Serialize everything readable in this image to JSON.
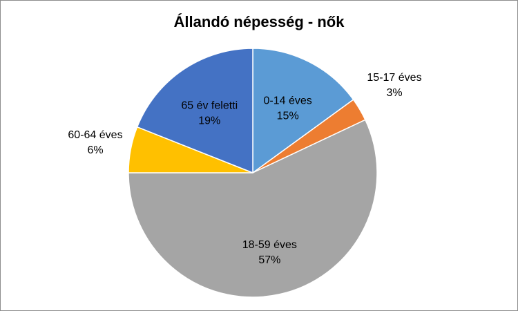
{
  "chart_data": {
    "type": "pie",
    "title": "Állandó népesség - nők",
    "slices": [
      {
        "label": "0-14 éves",
        "value": 15,
        "value_label": "15%",
        "color": "#5B9BD5",
        "label_pos": "inside"
      },
      {
        "label": "15-17 éves",
        "value": 3,
        "value_label": "3%",
        "color": "#ED7D31",
        "label_pos": "outside"
      },
      {
        "label": "18-59 éves",
        "value": 57,
        "value_label": "57%",
        "color": "#A5A5A5",
        "label_pos": "inside"
      },
      {
        "label": "60-64 éves",
        "value": 6,
        "value_label": "6%",
        "color": "#FFC000",
        "label_pos": "outside"
      },
      {
        "label": "65 év feletti",
        "value": 19,
        "value_label": "19%",
        "color": "#4472C4",
        "label_pos": "inside"
      }
    ],
    "legend": "none"
  }
}
